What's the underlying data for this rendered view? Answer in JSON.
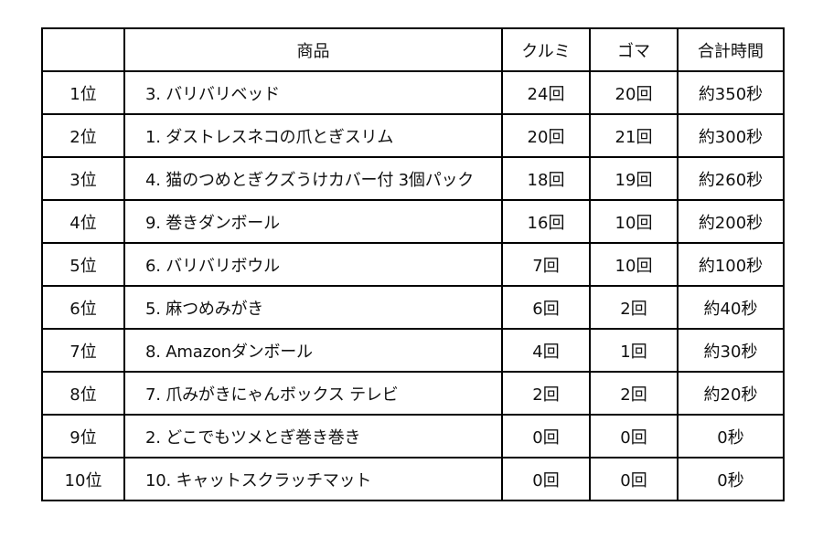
{
  "headers": {
    "rank": "",
    "product": "商品",
    "kurumi": "クルミ",
    "goma": "ゴマ",
    "total_time": "合計時間"
  },
  "rows": [
    {
      "rank": "1位",
      "product": "3. バリバリベッド",
      "kurumi": "24回",
      "goma": "20回",
      "total": "約350秒"
    },
    {
      "rank": "2位",
      "product": "1. ダストレスネコの爪とぎスリム",
      "kurumi": "20回",
      "goma": "21回",
      "total": "約300秒"
    },
    {
      "rank": "3位",
      "product": "4. 猫のつめとぎクズうけカバー付 3個パック",
      "kurumi": "18回",
      "goma": "19回",
      "total": "約260秒"
    },
    {
      "rank": "4位",
      "product": "9. 巻きダンボール",
      "kurumi": "16回",
      "goma": "10回",
      "total": "約200秒"
    },
    {
      "rank": "5位",
      "product": "6. バリバリボウル",
      "kurumi": "7回",
      "goma": "10回",
      "total": "約100秒"
    },
    {
      "rank": "6位",
      "product": "5. 麻つめみがき",
      "kurumi": "6回",
      "goma": "2回",
      "total": "約40秒"
    },
    {
      "rank": "7位",
      "product": "8. Amazonダンボール",
      "kurumi": "4回",
      "goma": "1回",
      "total": "約30秒"
    },
    {
      "rank": "8位",
      "product": "7. 爪みがきにゃんボックス テレビ",
      "kurumi": "2回",
      "goma": "2回",
      "total": "約20秒"
    },
    {
      "rank": "9位",
      "product": "2. どこでもツメとぎ巻き巻き",
      "kurumi": "0回",
      "goma": "0回",
      "total": "0秒"
    },
    {
      "rank": "10位",
      "product": "10. キャットスクラッチマット",
      "kurumi": "0回",
      "goma": "0回",
      "total": "0秒"
    }
  ]
}
